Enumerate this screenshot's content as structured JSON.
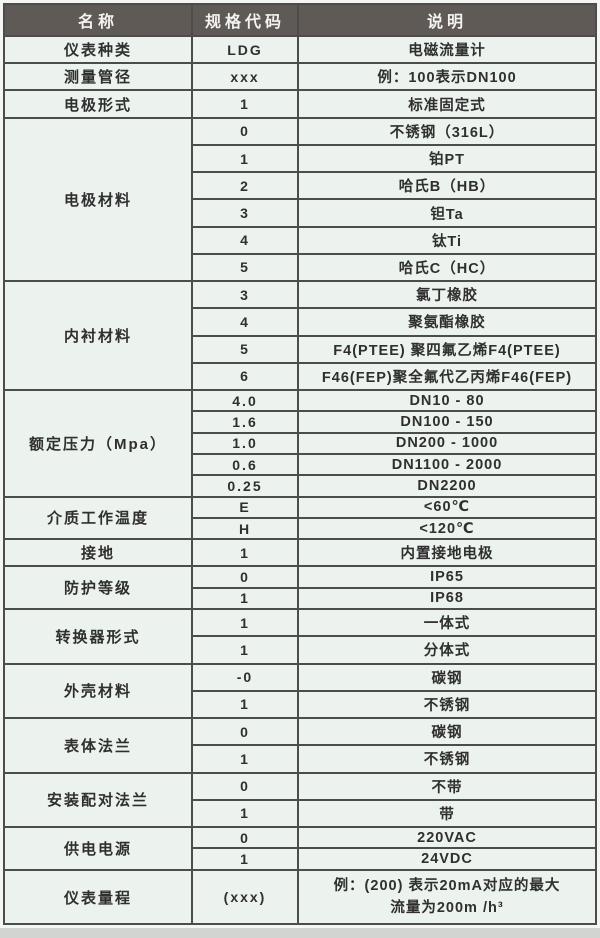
{
  "colors": {
    "page_bg": "#d2d4d1",
    "frame_bg": "#f3f6f2",
    "cell_bg": "#ecf2ed",
    "header_bg": "#5f5a55",
    "border": "#4c4c4c",
    "text": "#2f2f2f"
  },
  "table": {
    "header": {
      "name": "名称",
      "code": "规格代码",
      "desc": "说明"
    },
    "groups": [
      {
        "name": "仪表种类",
        "rows": [
          {
            "code": "LDG",
            "desc": "电磁流量计"
          }
        ]
      },
      {
        "name": "测量管径",
        "rows": [
          {
            "code": "xxx",
            "desc": "例：100表示DN100"
          }
        ]
      },
      {
        "name": "电极形式",
        "rows": [
          {
            "code": "1",
            "desc": "标准固定式"
          }
        ]
      },
      {
        "name": "电极材料",
        "rows": [
          {
            "code": "0",
            "desc": "不锈钢（316L）"
          },
          {
            "code": "1",
            "desc": "铂PT"
          },
          {
            "code": "2",
            "desc": "哈氏B（HB）"
          },
          {
            "code": "3",
            "desc": "钽Ta"
          },
          {
            "code": "4",
            "desc": "钛Ti"
          },
          {
            "code": "5",
            "desc": "哈氏C（HC）"
          }
        ]
      },
      {
        "name": "内衬材料",
        "rows": [
          {
            "code": "3",
            "desc": "氯丁橡胶"
          },
          {
            "code": "4",
            "desc": "聚氨酯橡胶"
          },
          {
            "code": "5",
            "desc": "F4(PTEE) 聚四氟乙烯F4(PTEE)"
          },
          {
            "code": "6",
            "desc": "F46(FEP)聚全氟代乙丙烯F46(FEP)"
          }
        ]
      },
      {
        "name": "额定压力（Mpa）",
        "rows": [
          {
            "code": "4.0",
            "desc": "DN10 - 80"
          },
          {
            "code": "1.6",
            "desc": "DN100 - 150"
          },
          {
            "code": "1.0",
            "desc": "DN200 - 1000"
          },
          {
            "code": "0.6",
            "desc": "DN1100 - 2000"
          },
          {
            "code": "0.25",
            "desc": "DN2200"
          }
        ]
      },
      {
        "name": "介质工作温度",
        "rows": [
          {
            "code": "E",
            "desc": "<60℃"
          },
          {
            "code": "H",
            "desc": "<120℃"
          }
        ]
      },
      {
        "name": "接地",
        "rows": [
          {
            "code": "1",
            "desc": "内置接地电极"
          }
        ]
      },
      {
        "name": "防护等级",
        "rows": [
          {
            "code": "0",
            "desc": "IP65"
          },
          {
            "code": "1",
            "desc": "IP68"
          }
        ]
      },
      {
        "name": "转换器形式",
        "rows": [
          {
            "code": "1",
            "desc": "一体式"
          },
          {
            "code": "1",
            "desc": "分体式"
          }
        ]
      },
      {
        "name": "外壳材料",
        "rows": [
          {
            "code": "-0",
            "desc": "碳钢"
          },
          {
            "code": "1",
            "desc": "不锈钢"
          }
        ]
      },
      {
        "name": "表体法兰",
        "rows": [
          {
            "code": "0",
            "desc": "碳钢"
          },
          {
            "code": "1",
            "desc": "不锈钢"
          }
        ]
      },
      {
        "name": "安装配对法兰",
        "rows": [
          {
            "code": "0",
            "desc": "不带"
          },
          {
            "code": "1",
            "desc": "带"
          }
        ]
      },
      {
        "name": "供电电源",
        "rows": [
          {
            "code": "0",
            "desc": "220VAC"
          },
          {
            "code": "1",
            "desc": "24VDC"
          }
        ]
      },
      {
        "name": "仪表量程",
        "rows": [
          {
            "code": "(xxx)",
            "desc": "例：(200) 表示20mA对应的最大",
            "desc2": "流量为200m /h³"
          }
        ]
      }
    ]
  }
}
